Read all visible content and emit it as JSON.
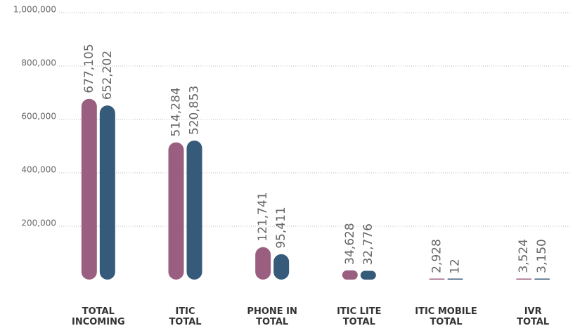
{
  "chart_data": {
    "type": "bar",
    "categories": [
      "TOTAL\nINCOMING",
      "ITIC\nTOTAL",
      "PHONE IN\nTOTAL",
      "ITIC LITE\nTOTAL",
      "ITIC MOBILE\nTOTAL",
      "IVR\nTOTAL"
    ],
    "series": [
      {
        "color": "#9a5f80",
        "values": [
          677105,
          514284,
          121741,
          34628,
          2928,
          3524
        ],
        "value_labels": [
          "677,105",
          "514,284",
          "121,741",
          "34,628",
          "2,928",
          "3,524"
        ]
      },
      {
        "color": "#355a7a",
        "values": [
          652202,
          520853,
          95411,
          32776,
          12,
          3150
        ],
        "value_labels": [
          "652,202",
          "520,853",
          "95,411",
          "32,776",
          "12",
          "3,150"
        ]
      }
    ],
    "ylim": [
      0,
      1000000
    ],
    "yticks": [
      {
        "value": 200000,
        "label": "200,000"
      },
      {
        "value": 400000,
        "label": "400,000"
      },
      {
        "value": 600000,
        "label": "600,000"
      },
      {
        "value": 800000,
        "label": "800,000"
      },
      {
        "value": 1000000,
        "label": "1,000,000"
      }
    ],
    "grid": true
  }
}
